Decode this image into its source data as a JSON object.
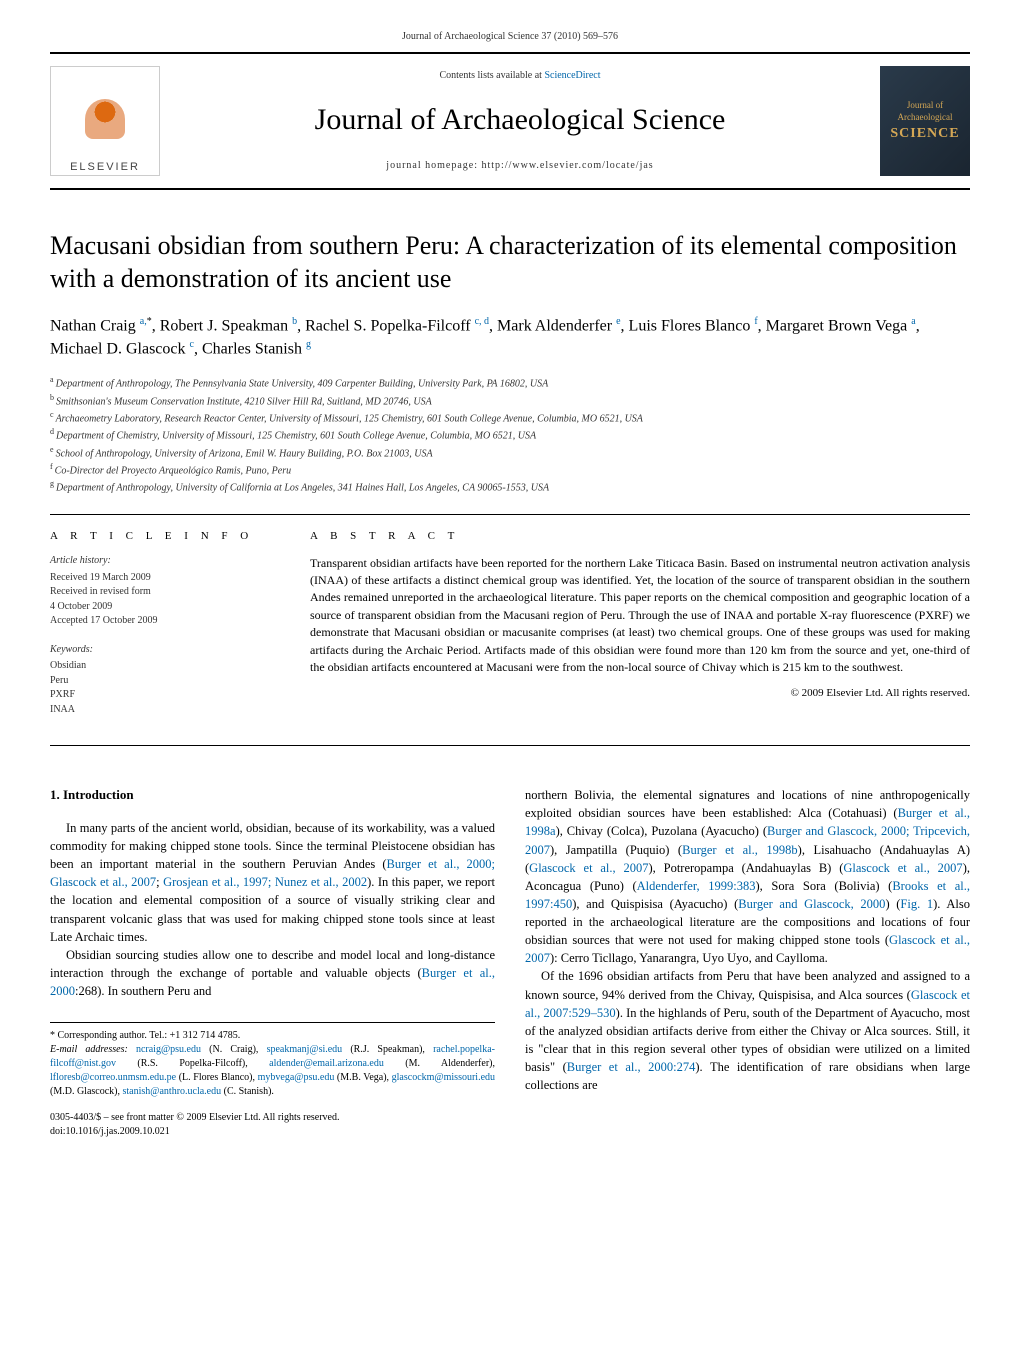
{
  "header": {
    "citation": "Journal of Archaeological Science 37 (2010) 569–576",
    "contents_prefix": "Contents lists available at ",
    "contents_link": "ScienceDirect",
    "journal_title": "Journal of Archaeological Science",
    "homepage": "journal homepage: http://www.elsevier.com/locate/jas",
    "publisher_logo_text": "ELSEVIER",
    "cover_text_top": "Journal of",
    "cover_text_mid": "Archaeological",
    "cover_text_bottom": "SCIENCE"
  },
  "article": {
    "title": "Macusani obsidian from southern Peru: A characterization of its elemental composition with a demonstration of its ancient use",
    "authors_html": "Nathan Craig <span class='sup'>a,</span><span class='sup-black'>*</span>, Robert J. Speakman <span class='sup'>b</span>, Rachel S. Popelka-Filcoff <span class='sup'>c, d</span>, Mark Aldenderfer <span class='sup'>e</span>, Luis Flores Blanco <span class='sup'>f</span>, Margaret Brown Vega <span class='sup'>a</span>, Michael D. Glascock <span class='sup'>c</span>, Charles Stanish <span class='sup'>g</span>",
    "affiliations": [
      {
        "sup": "a",
        "text": "Department of Anthropology, The Pennsylvania State University, 409 Carpenter Building, University Park, PA 16802, USA"
      },
      {
        "sup": "b",
        "text": "Smithsonian's Museum Conservation Institute, 4210 Silver Hill Rd, Suitland, MD 20746, USA"
      },
      {
        "sup": "c",
        "text": "Archaeometry Laboratory, Research Reactor Center, University of Missouri, 125 Chemistry, 601 South College Avenue, Columbia, MO 6521, USA"
      },
      {
        "sup": "d",
        "text": "Department of Chemistry, University of Missouri, 125 Chemistry, 601 South College Avenue, Columbia, MO 6521, USA"
      },
      {
        "sup": "e",
        "text": "School of Anthropology, University of Arizona, Emil W. Haury Building, P.O. Box 21003, USA"
      },
      {
        "sup": "f",
        "text": "Co-Director del Proyecto Arqueológico Ramis, Puno, Peru"
      },
      {
        "sup": "g",
        "text": "Department of Anthropology, University of California at Los Angeles, 341 Haines Hall, Los Angeles, CA 90065-1553, USA"
      }
    ]
  },
  "info": {
    "heading": "A R T I C L E   I N F O",
    "history_label": "Article history:",
    "history": [
      "Received 19 March 2009",
      "Received in revised form",
      "4 October 2009",
      "Accepted 17 October 2009"
    ],
    "keywords_label": "Keywords:",
    "keywords": [
      "Obsidian",
      "Peru",
      "PXRF",
      "INAA"
    ]
  },
  "abstract": {
    "heading": "A B S T R A C T",
    "text": "Transparent obsidian artifacts have been reported for the northern Lake Titicaca Basin. Based on instrumental neutron activation analysis (INAA) of these artifacts a distinct chemical group was identified. Yet, the location of the source of transparent obsidian in the southern Andes remained unreported in the archaeological literature. This paper reports on the chemical composition and geographic location of a source of transparent obsidian from the Macusani region of Peru. Through the use of INAA and portable X-ray fluorescence (PXRF) we demonstrate that Macusani obsidian or macusanite comprises (at least) two chemical groups. One of these groups was used for making artifacts during the Archaic Period. Artifacts made of this obsidian were found more than 120 km from the source and yet, one-third of the obsidian artifacts encountered at Macusani were from the non-local source of Chivay which is 215 km to the southwest.",
    "copyright": "© 2009 Elsevier Ltd. All rights reserved."
  },
  "body": {
    "section_heading": "1. Introduction",
    "left_p1": "In many parts of the ancient world, obsidian, because of its workability, was a valued commodity for making chipped stone tools. Since the terminal Pleistocene obsidian has been an important material in the southern Peruvian Andes (",
    "left_p1_ref1": "Burger et al., 2000; Glascock et al., 2007",
    "left_p1_mid": "; ",
    "left_p1_ref2": "Grosjean et al., 1997; Nunez et al., 2002",
    "left_p1_end": "). In this paper, we report the location and elemental composition of a source of visually striking clear and transparent volcanic glass that was used for making chipped stone tools since at least Late Archaic times.",
    "left_p2_a": "Obsidian sourcing studies allow one to describe and model local and long-distance interaction through the exchange of portable and valuable objects (",
    "left_p2_ref": "Burger et al., 2000",
    "left_p2_b": ":268). In southern Peru and",
    "right_p1": "northern Bolivia, the elemental signatures and locations of nine anthropogenically exploited obsidian sources have been established: Alca (Cotahuasi) (Burger et al., 1998a), Chivay (Colca), Puzolana (Ayacucho) (Burger and Glascock, 2000; Tripcevich, 2007), Jampatilla (Puquio) (Burger et al., 1998b), Lisahuacho (Andahuaylas A) (Glascock et al., 2007), Potreropampa (Andahuaylas B) (Glascock et al., 2007), Aconcagua (Puno) (Aldenderfer, 1999:383), Sora Sora (Bolivia) (Brooks et al., 1997:450), and Quispisisa (Ayacucho) (Burger and Glascock, 2000) (Fig. 1). Also reported in the archaeological literature are the compositions and locations of four obsidian sources that were not used for making chipped stone tools (Glascock et al., 2007): Cerro Ticllago, Yanarangra, Uyo Uyo, and Caylloma.",
    "right_p2": "Of the 1696 obsidian artifacts from Peru that have been analyzed and assigned to a known source, 94% derived from the Chivay, Quispisisa, and Alca sources (Glascock et al., 2007:529–530). In the highlands of Peru, south of the Department of Ayacucho, most of the analyzed obsidian artifacts derive from either the Chivay or Alca sources. Still, it is \"clear that in this region several other types of obsidian were utilized on a limited basis\" (Burger et al., 2000:274). The identification of rare obsidians when large collections are"
  },
  "footnotes": {
    "corresponding": "* Corresponding author. Tel.: +1 312 714 4785.",
    "emails_label": "E-mail addresses: ",
    "emails": "ncraig@psu.edu (N. Craig), speakmanj@si.edu (R.J. Speakman), rachel.popelka-filcoff@nist.gov (R.S. Popelka-Filcoff), aldender@email.arizona.edu (M. Aldenderfer), lfloresb@correo.unmsm.edu.pe (L. Flores Blanco), mybvega@psu.edu (M.B. Vega), glascockm@missouri.edu (M.D. Glascock), stanish@anthro.ucla.edu (C. Stanish).",
    "front_matter_1": "0305-4403/$ – see front matter © 2009 Elsevier Ltd. All rights reserved.",
    "front_matter_2": "doi:10.1016/j.jas.2009.10.021"
  },
  "colors": {
    "link": "#0066aa",
    "text": "#000000",
    "muted": "#333333",
    "cover_bg": "#1a2530",
    "cover_accent": "#d4a755"
  }
}
